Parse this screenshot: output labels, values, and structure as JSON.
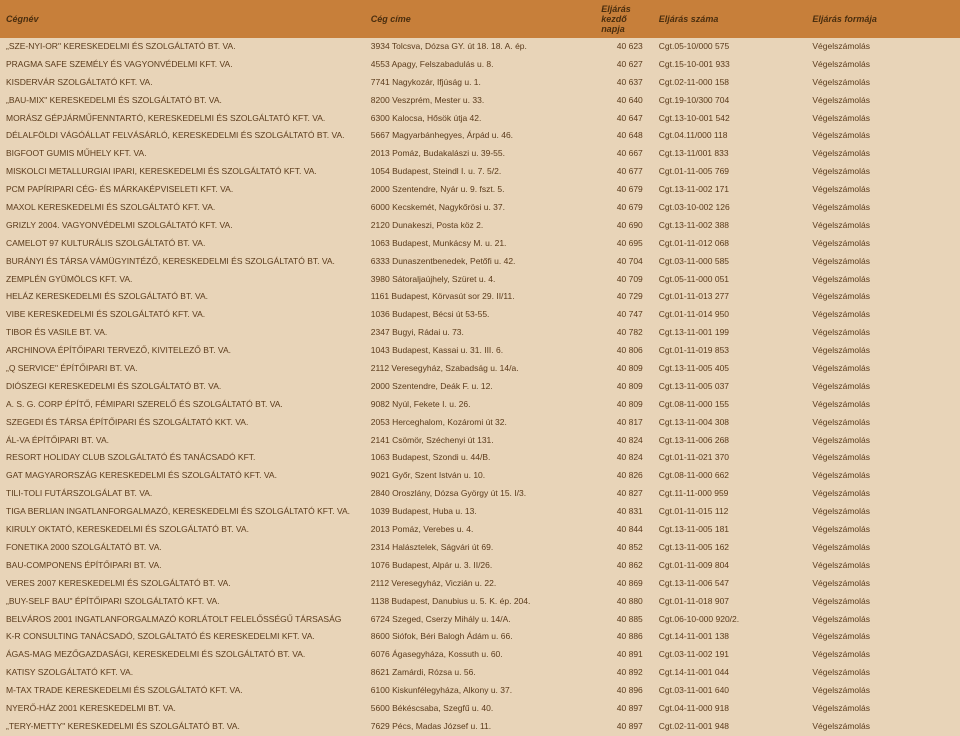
{
  "headers": {
    "name": "Cégnév",
    "address": "Cég címe",
    "start": "Eljárás kezdő napja",
    "caseNum": "Eljárás száma",
    "form": "Eljárás formája"
  },
  "styling": {
    "header_bg": "#c77f3a",
    "body_bg": "#e8d4b8",
    "text_color": "#5a3a1a",
    "header_text_color": "#4a2e0f",
    "col_widths_pct": [
      38,
      24,
      6,
      16,
      16
    ],
    "font_size_header": 9,
    "font_size_body": 8.5
  },
  "rows": [
    {
      "name": "„SZE-NYI-OR\" KERESKEDELMI ÉS SZOLGÁLTATÓ BT. VA.",
      "addr": "3934 Tolcsva, Dózsa GY. út 18. 18. A. ép.",
      "num": "40 623",
      "case": "Cgt.05-10/000 575",
      "form": "Végelszámolás"
    },
    {
      "name": "PRAGMA SAFE SZEMÉLY ÉS VAGYONVÉDELMI KFT. VA.",
      "addr": "4553 Apagy, Felszabadulás u. 8.",
      "num": "40 627",
      "case": "Cgt.15-10-001 933",
      "form": "Végelszámolás"
    },
    {
      "name": "KISDERVÁR SZOLGÁLTATÓ KFT. VA.",
      "addr": "7741 Nagykozár, Ifjúság u. 1.",
      "num": "40 637",
      "case": "Cgt.02-11-000 158",
      "form": "Végelszámolás"
    },
    {
      "name": "„BAU-MIX\" KERESKEDELMI ÉS SZOLGÁLTATÓ BT. VA.",
      "addr": "8200 Veszprém, Mester u. 33.",
      "num": "40 640",
      "case": "Cgt.19-10/300 704",
      "form": "Végelszámolás"
    },
    {
      "name": "MORÁSZ GÉPJÁRMŰFENNTARTÓ, KERESKEDELMI ÉS SZOLGÁLTATÓ KFT. VA.",
      "addr": "6300 Kalocsa, Hősök útja 42.",
      "num": "40 647",
      "case": "Cgt.13-10-001 542",
      "form": "Végelszámolás"
    },
    {
      "name": "DÉLALFÖLDI VÁGÓÁLLAT FELVÁSÁRLÓ, KERESKEDELMI ÉS SZOLGÁLTATÓ BT. VA.",
      "addr": "5667 Magyarbánhegyes, Árpád u. 46.",
      "num": "40 648",
      "case": "Cgt.04.11/000 118",
      "form": "Végelszámolás"
    },
    {
      "name": "BIGFOOT GUMIS MŰHELY KFT. VA.",
      "addr": "2013 Pomáz, Budakalászi u. 39-55.",
      "num": "40 667",
      "case": "Cgt.13-11/001 833",
      "form": "Végelszámolás"
    },
    {
      "name": "MISKOLCI METALLURGIAI IPARI, KERESKEDELMI ÉS SZOLGÁLTATÓ KFT. VA.",
      "addr": "1054 Budapest, Steindl I. u. 7. 5/2.",
      "num": "40 677",
      "case": "Cgt.01-11-005 769",
      "form": "Végelszámolás"
    },
    {
      "name": "PCM PAPÍRIPARI CÉG- ÉS MÁRKAKÉPVISELETI KFT. VA.",
      "addr": "2000 Szentendre, Nyár u. 9. fszt. 5.",
      "num": "40 679",
      "case": "Cgt.13-11-002 171",
      "form": "Végelszámolás"
    },
    {
      "name": "MAXOL KERESKEDELMI ÉS SZOLGÁLTATÓ KFT. VA.",
      "addr": "6000 Kecskemét, Nagykőrösi u. 37.",
      "num": "40 679",
      "case": "Cgt.03-10-002 126",
      "form": "Végelszámolás"
    },
    {
      "name": "GRIZLY 2004. VAGYONVÉDELMI SZOLGÁLTATÓ KFT. VA.",
      "addr": "2120 Dunakeszi, Posta köz 2.",
      "num": "40 690",
      "case": "Cgt.13-11-002 388",
      "form": "Végelszámolás"
    },
    {
      "name": "CAMELOT 97 KULTURÁLIS SZOLGÁLTATÓ BT. VA.",
      "addr": "1063 Budapest, Munkácsy M. u. 21.",
      "num": "40 695",
      "case": "Cgt.01-11-012 068",
      "form": "Végelszámolás"
    },
    {
      "name": "BURÁNYI ÉS TÁRSA VÁMÜGYINTÉZŐ, KERESKEDELMI ÉS SZOLGÁLTATÓ BT. VA.",
      "addr": "6333 Dunaszentbenedek, Petőfi u. 42.",
      "num": "40 704",
      "case": "Cgt.03-11-000 585",
      "form": "Végelszámolás"
    },
    {
      "name": "ZEMPLÉN GYÜMÖLCS KFT. VA.",
      "addr": "3980 Sátoraljaújhely, Szüret u. 4.",
      "num": "40 709",
      "case": "Cgt.05-11-000 051",
      "form": "Végelszámolás"
    },
    {
      "name": "HELÁZ KERESKEDELMI ÉS SZOLGÁLTATÓ BT. VA.",
      "addr": "1161 Budapest, Körvasút sor 29. II/11.",
      "num": "40 729",
      "case": "Cgt.01-11-013 277",
      "form": "Végelszámolás"
    },
    {
      "name": "VIBE KERESKEDELMI ÉS SZOLGÁLTATÓ KFT. VA.",
      "addr": "1036 Budapest, Bécsi út 53-55.",
      "num": "40 747",
      "case": "Cgt.01-11-014 950",
      "form": "Végelszámolás"
    },
    {
      "name": "TIBOR ÉS VASILE BT. VA.",
      "addr": "2347 Bugyi, Rádai u. 73.",
      "num": "40 782",
      "case": "Cgt.13-11-001 199",
      "form": "Végelszámolás"
    },
    {
      "name": "ARCHINOVA ÉPÍTŐIPARI TERVEZŐ, KIVITELEZŐ BT. VA.",
      "addr": "1043 Budapest, Kassai u. 31. III. 6.",
      "num": "40 806",
      "case": "Cgt.01-11-019 853",
      "form": "Végelszámolás"
    },
    {
      "name": "„Q SERVICE\" ÉPÍTŐIPARI BT. VA.",
      "addr": "2112 Veresegyház, Szabadság u. 14/a.",
      "num": "40 809",
      "case": "Cgt.13-11-005 405",
      "form": "Végelszámolás"
    },
    {
      "name": "DIÓSZEGI KERESKEDELMI ÉS SZOLGÁLTATÓ BT. VA.",
      "addr": "2000 Szentendre, Deák F. u. 12.",
      "num": "40 809",
      "case": "Cgt.13-11-005 037",
      "form": "Végelszámolás"
    },
    {
      "name": "A. S. G. CORP ÉPÍTŐ, FÉMIPARI SZERELŐ ÉS SZOLGÁLTATÓ BT. VA.",
      "addr": "9082 Nyúl, Fekete I. u. 26.",
      "num": "40 809",
      "case": "Cgt.08-11-000 155",
      "form": "Végelszámolás"
    },
    {
      "name": "SZEGEDI ÉS TÁRSA ÉPÍTŐIPARI ÉS SZOLGÁLTATÓ KKT. VA.",
      "addr": "2053 Herceghalom, Kozáromi út 32.",
      "num": "40 817",
      "case": "Cgt.13-11-004 308",
      "form": "Végelszámolás"
    },
    {
      "name": "ÁL-VA ÉPÍTŐIPARI BT. VA.",
      "addr": "2141 Csömör, Széchenyi út 131.",
      "num": "40 824",
      "case": "Cgt.13-11-006 268",
      "form": "Végelszámolás"
    },
    {
      "name": "RESORT HOLIDAY CLUB SZOLGÁLTATÓ ÉS TANÁCSADÓ KFT.",
      "addr": "1063 Budapest, Szondi u. 44/B.",
      "num": "40 824",
      "case": "Cgt.01-11-021 370",
      "form": "Végelszámolás"
    },
    {
      "name": "GAT MAGYARORSZÁG KERESKEDELMI ÉS SZOLGÁLTATÓ KFT. VA.",
      "addr": "9021 Győr, Szent István u. 10.",
      "num": "40 826",
      "case": "Cgt.08-11-000 662",
      "form": "Végelszámolás"
    },
    {
      "name": "TILI-TOLI FUTÁRSZOLGÁLAT BT. VA.",
      "addr": "2840 Oroszlány, Dózsa György út 15. I/3.",
      "num": "40 827",
      "case": "Cgt.11-11-000 959",
      "form": "Végelszámolás"
    },
    {
      "name": "TIGA BERLIAN INGATLANFORGALMAZÓ, KERESKEDELMI ÉS SZOLGÁLTATÓ KFT. VA.",
      "addr": "1039 Budapest, Huba u. 13.",
      "num": "40 831",
      "case": "Cgt.01-11-015 112",
      "form": "Végelszámolás"
    },
    {
      "name": "KIRULY OKTATÓ, KERESKEDELMI ÉS SZOLGÁLTATÓ BT. VA.",
      "addr": "2013 Pomáz, Verebes u. 4.",
      "num": "40 844",
      "case": "Cgt.13-11-005 181",
      "form": "Végelszámolás"
    },
    {
      "name": "FONETIKA 2000 SZOLGÁLTATÓ BT. VA.",
      "addr": "2314 Halásztelek, Ságvári út 69.",
      "num": "40 852",
      "case": "Cgt.13-11-005 162",
      "form": "Végelszámolás"
    },
    {
      "name": "BAU-COMPONENS ÉPÍTŐIPARI BT. VA.",
      "addr": "1076 Budapest, Alpár u. 3. II/26.",
      "num": "40 862",
      "case": "Cgt.01-11-009 804",
      "form": "Végelszámolás"
    },
    {
      "name": "VERES 2007 KERESKEDELMI ÉS SZOLGÁLTATÓ BT. VA.",
      "addr": "2112 Veresegyház, Viczián u. 22.",
      "num": "40 869",
      "case": "Cgt.13-11-006 547",
      "form": "Végelszámolás"
    },
    {
      "name": "„BUY-SELF BAU\" ÉPÍTŐIPARI SZOLGÁLTATÓ KFT. VA.",
      "addr": "1138 Budapest, Danubius u. 5. K. ép. 204.",
      "num": "40 880",
      "case": "Cgt.01-11-018 907",
      "form": "Végelszámolás"
    },
    {
      "name": "BELVÁROS 2001 INGATLANFORGALMAZÓ KORLÁTOLT FELELŐSSÉGŰ TÁRSASÁG",
      "addr": "6724 Szeged, Cserzy Mihály u. 14/A.",
      "num": "40 885",
      "case": "Cgt.06-10-000 920/2.",
      "form": "Végelszámolás"
    },
    {
      "name": "K-R CONSULTING TANÁCSADÓ, SZOLGÁLTATÓ ÉS KERESKEDELMI KFT. VA.",
      "addr": "8600 Siófok, Béri Balogh Ádám u. 66.",
      "num": "40 886",
      "case": "Cgt.14-11-001 138",
      "form": "Végelszámolás"
    },
    {
      "name": "ÁGAS-MAG MEZŐGAZDASÁGI, KERESKEDELMI ÉS SZOLGÁLTATÓ BT. VA.",
      "addr": "6076 Ágasegyháza, Kossuth u. 60.",
      "num": "40 891",
      "case": "Cgt.03-11-002 191",
      "form": "Végelszámolás"
    },
    {
      "name": "KATISY SZOLGÁLTATÓ KFT. VA.",
      "addr": "8621 Zamárdi, Rózsa u. 56.",
      "num": "40 892",
      "case": "Cgt.14-11-001 044",
      "form": "Végelszámolás"
    },
    {
      "name": "M-TAX TRADE KERESKEDELMI ÉS SZOLGÁLTATÓ KFT. VA.",
      "addr": "6100 Kiskunfélegyháza, Alkony u. 37.",
      "num": "40 896",
      "case": "Cgt.03-11-001 640",
      "form": "Végelszámolás"
    },
    {
      "name": "NYERŐ-HÁZ 2001 KERESKEDELMI BT. VA.",
      "addr": "5600 Békéscsaba, Szegfű u. 40.",
      "num": "40 897",
      "case": "Cgt.04-11-000 918",
      "form": "Végelszámolás"
    },
    {
      "name": "„TERY-METTY\" KERESKEDELMI ÉS SZOLGÁLTATÓ BT. VA.",
      "addr": "7629 Pécs, Madas József u. 11.",
      "num": "40 897",
      "case": "Cgt.02-11-001 948",
      "form": "Végelszámolás"
    }
  ]
}
